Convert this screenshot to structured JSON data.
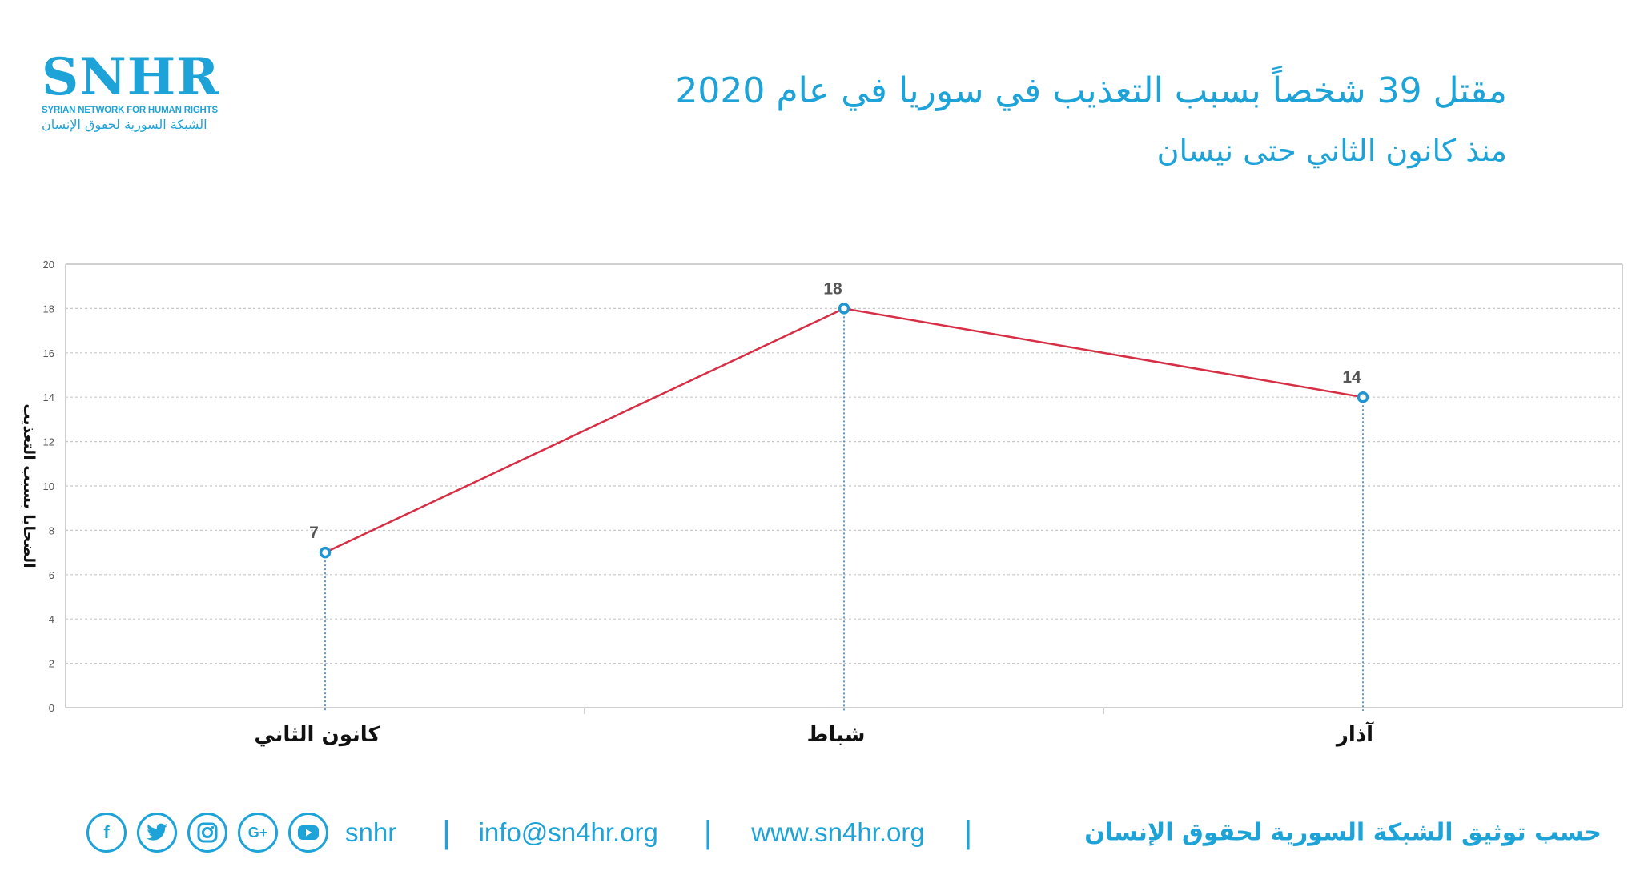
{
  "logo": {
    "main": "SNHR",
    "en": "SYRIAN NETWORK FOR HUMAN RIGHTS",
    "ar": "الشبكة السورية لحقوق الإنسان"
  },
  "header": {
    "title": "مقتل 39 شخصاً بسبب التعذيب في سوريا في عام 2020",
    "subtitle": "منذ كانون الثاني حتى نيسان"
  },
  "chart_data": {
    "type": "line",
    "categories": [
      "كانون الثاني",
      "شباط",
      "آذار"
    ],
    "series": [
      {
        "values": [
          7,
          18,
          14
        ]
      }
    ],
    "data_labels": [
      "7",
      "18",
      "14"
    ],
    "ylabel": "الضحايا بسبب التعذيب",
    "ylim": [
      0,
      20
    ],
    "y_ticks": [
      "0",
      "2",
      "4",
      "6",
      "8",
      "10",
      "12",
      "14",
      "16",
      "18",
      "20"
    ],
    "grid": true,
    "colors": {
      "line": "#d62f45",
      "marker": "#1e96d2",
      "drop_line": "#4a8fd0",
      "grid": "#c8c8c8"
    }
  },
  "footer": {
    "social_icons": [
      "facebook-icon",
      "twitter-icon",
      "instagram-icon",
      "google-plus-icon",
      "youtube-icon"
    ],
    "handle": "snhr",
    "separator": "|",
    "email": "info@sn4hr.org",
    "website": "www.sn4hr.org",
    "attribution": "حسب توثيق الشبكة السورية لحقوق الإنسان"
  },
  "colors": {
    "brand": "#1ea3d8"
  }
}
